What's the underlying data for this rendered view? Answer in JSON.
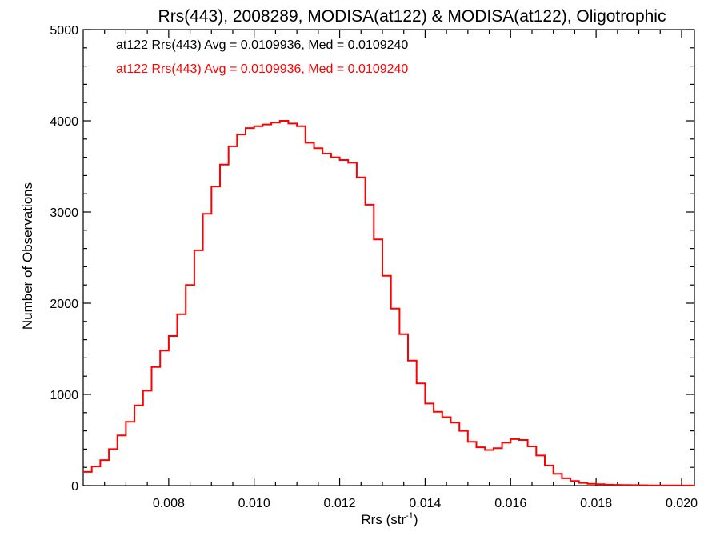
{
  "chart_data": {
    "type": "histogram-step",
    "title": "Rrs(443), 2008289, MODISA(at122) & MODISA(at122), Oligotrophic",
    "xlabel": "Rrs (str",
    "xlabel_sup": "-1",
    "xlabel_end": ")",
    "ylabel": "Number of Observations",
    "xlim": [
      0.006,
      0.0203
    ],
    "ylim": [
      0,
      5000
    ],
    "x_ticks": [
      0.008,
      0.01,
      0.012,
      0.014,
      0.016,
      0.018,
      0.02
    ],
    "x_tick_labels": [
      "0.008",
      "0.010",
      "0.012",
      "0.014",
      "0.016",
      "0.018",
      "0.020"
    ],
    "y_ticks": [
      0,
      1000,
      2000,
      3000,
      4000,
      5000
    ],
    "y_tick_labels": [
      "0",
      "1000",
      "2000",
      "3000",
      "4000",
      "5000"
    ],
    "grid": false,
    "annotations": [
      {
        "text": "at122 Rrs(443) Avg = 0.0109936, Med = 0.0109240",
        "color": "#000000"
      },
      {
        "text": "at122 Rrs(443) Avg = 0.0109936, Med = 0.0109240",
        "color": "#ff0000"
      }
    ],
    "series": [
      {
        "color": "#ff0000",
        "points": [
          [
            0.006,
            150
          ],
          [
            0.0062,
            210
          ],
          [
            0.0064,
            280
          ],
          [
            0.0066,
            400
          ],
          [
            0.0068,
            550
          ],
          [
            0.007,
            700
          ],
          [
            0.0072,
            880
          ],
          [
            0.0074,
            1040
          ],
          [
            0.0076,
            1300
          ],
          [
            0.0078,
            1480
          ],
          [
            0.008,
            1640
          ],
          [
            0.0082,
            1880
          ],
          [
            0.0084,
            2200
          ],
          [
            0.0086,
            2580
          ],
          [
            0.0088,
            2980
          ],
          [
            0.009,
            3280
          ],
          [
            0.0092,
            3520
          ],
          [
            0.0094,
            3720
          ],
          [
            0.0096,
            3850
          ],
          [
            0.0098,
            3920
          ],
          [
            0.01,
            3940
          ],
          [
            0.0102,
            3960
          ],
          [
            0.0104,
            3980
          ],
          [
            0.0106,
            4000
          ],
          [
            0.0108,
            3970
          ],
          [
            0.011,
            3940
          ],
          [
            0.0112,
            3760
          ],
          [
            0.0114,
            3700
          ],
          [
            0.0116,
            3640
          ],
          [
            0.0118,
            3600
          ],
          [
            0.012,
            3570
          ],
          [
            0.0122,
            3540
          ],
          [
            0.0124,
            3380
          ],
          [
            0.0126,
            3080
          ],
          [
            0.0128,
            2700
          ],
          [
            0.013,
            2300
          ],
          [
            0.0132,
            1940
          ],
          [
            0.0134,
            1660
          ],
          [
            0.0136,
            1370
          ],
          [
            0.0138,
            1120
          ],
          [
            0.014,
            900
          ],
          [
            0.0142,
            810
          ],
          [
            0.0144,
            750
          ],
          [
            0.0146,
            690
          ],
          [
            0.0148,
            600
          ],
          [
            0.015,
            480
          ],
          [
            0.0152,
            420
          ],
          [
            0.0154,
            390
          ],
          [
            0.0156,
            410
          ],
          [
            0.0158,
            470
          ],
          [
            0.016,
            510
          ],
          [
            0.0162,
            500
          ],
          [
            0.0164,
            430
          ],
          [
            0.0166,
            330
          ],
          [
            0.0168,
            220
          ],
          [
            0.017,
            130
          ],
          [
            0.0172,
            80
          ],
          [
            0.0174,
            50
          ],
          [
            0.0176,
            30
          ],
          [
            0.0178,
            20
          ],
          [
            0.018,
            15
          ],
          [
            0.0182,
            10
          ],
          [
            0.0184,
            8
          ],
          [
            0.0186,
            6
          ],
          [
            0.0188,
            5
          ],
          [
            0.019,
            4
          ],
          [
            0.0192,
            3
          ],
          [
            0.0194,
            3
          ],
          [
            0.0196,
            2
          ],
          [
            0.0198,
            2
          ],
          [
            0.02,
            1
          ],
          [
            0.0203,
            1
          ]
        ]
      }
    ]
  }
}
